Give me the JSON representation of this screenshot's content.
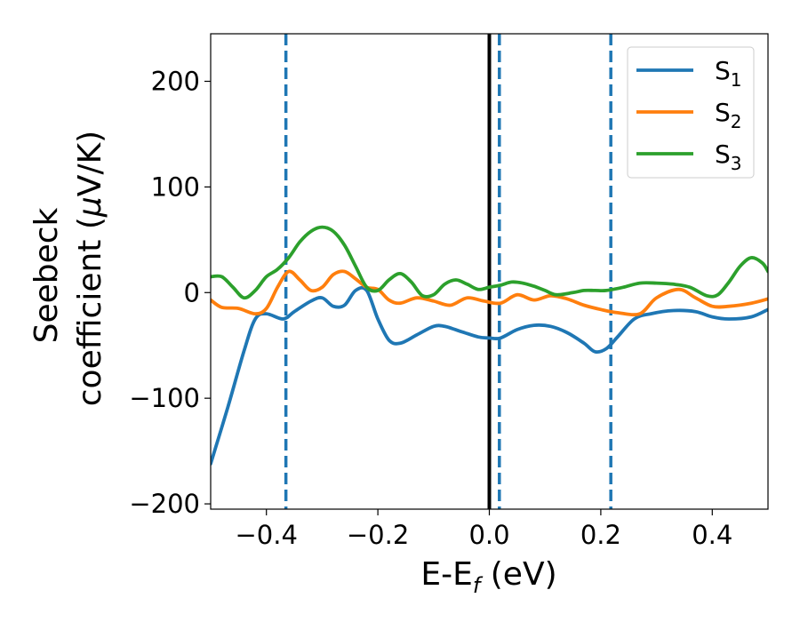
{
  "chart_data": {
    "type": "line",
    "xlabel": {
      "main": "E-E",
      "sub": "f",
      "unit": " (eV)"
    },
    "ylabel": {
      "line1": "Seebeck",
      "line2_text": "coefficient  (",
      "line2_mu": "μ",
      "line2_unit": "V/K)"
    },
    "xlim": [
      -0.5,
      0.5
    ],
    "ylim": [
      -205,
      245
    ],
    "xticks": [
      -0.4,
      -0.2,
      0.0,
      0.2,
      0.4
    ],
    "xtick_labels": [
      "−0.4",
      "−0.2",
      "0.0",
      "0.2",
      "0.4"
    ],
    "yticks": [
      -200,
      -100,
      0,
      100,
      200
    ],
    "ytick_labels": [
      "−200",
      "−100",
      "0",
      "100",
      "200"
    ],
    "grid": false,
    "legend_position": "top-right",
    "vertical_lines": [
      {
        "x": -0.365,
        "style": "dashed",
        "color": "#1f77b4"
      },
      {
        "x": 0.0,
        "style": "solid",
        "color": "#000000"
      },
      {
        "x": 0.018,
        "style": "dashed",
        "color": "#1f77b4"
      },
      {
        "x": 0.218,
        "style": "dashed",
        "color": "#1f77b4"
      }
    ],
    "series": [
      {
        "name": "S",
        "subscript": "1",
        "color": "#1f77b4",
        "points": [
          [
            -0.5,
            -162
          ],
          [
            -0.47,
            -110
          ],
          [
            -0.44,
            -55
          ],
          [
            -0.42,
            -25
          ],
          [
            -0.4,
            -20
          ],
          [
            -0.37,
            -25
          ],
          [
            -0.35,
            -18
          ],
          [
            -0.32,
            -8
          ],
          [
            -0.3,
            -5
          ],
          [
            -0.28,
            -13
          ],
          [
            -0.26,
            -12
          ],
          [
            -0.24,
            2
          ],
          [
            -0.22,
            2
          ],
          [
            -0.2,
            -25
          ],
          [
            -0.18,
            -45
          ],
          [
            -0.16,
            -48
          ],
          [
            -0.13,
            -40
          ],
          [
            -0.1,
            -32
          ],
          [
            -0.08,
            -32
          ],
          [
            -0.05,
            -37
          ],
          [
            -0.02,
            -42
          ],
          [
            0.0,
            -43
          ],
          [
            0.02,
            -43
          ],
          [
            0.05,
            -35
          ],
          [
            0.08,
            -31
          ],
          [
            0.11,
            -32
          ],
          [
            0.14,
            -38
          ],
          [
            0.17,
            -48
          ],
          [
            0.19,
            -56
          ],
          [
            0.21,
            -53
          ],
          [
            0.23,
            -42
          ],
          [
            0.26,
            -25
          ],
          [
            0.29,
            -20
          ],
          [
            0.33,
            -17
          ],
          [
            0.37,
            -18
          ],
          [
            0.4,
            -23
          ],
          [
            0.43,
            -25
          ],
          [
            0.47,
            -23
          ],
          [
            0.5,
            -16
          ]
        ]
      },
      {
        "name": "S",
        "subscript": "2",
        "color": "#ff7f0e",
        "points": [
          [
            -0.5,
            -7
          ],
          [
            -0.48,
            -14
          ],
          [
            -0.45,
            -15
          ],
          [
            -0.42,
            -20
          ],
          [
            -0.4,
            -15
          ],
          [
            -0.38,
            5
          ],
          [
            -0.36,
            20
          ],
          [
            -0.34,
            12
          ],
          [
            -0.32,
            2
          ],
          [
            -0.3,
            5
          ],
          [
            -0.28,
            17
          ],
          [
            -0.26,
            20
          ],
          [
            -0.24,
            13
          ],
          [
            -0.22,
            5
          ],
          [
            -0.2,
            3
          ],
          [
            -0.18,
            -7
          ],
          [
            -0.16,
            -10
          ],
          [
            -0.13,
            -5
          ],
          [
            -0.1,
            -8
          ],
          [
            -0.07,
            -12
          ],
          [
            -0.04,
            -5
          ],
          [
            -0.01,
            -8
          ],
          [
            0.02,
            -10
          ],
          [
            0.05,
            -2
          ],
          [
            0.08,
            -7
          ],
          [
            0.11,
            -3
          ],
          [
            0.14,
            -6
          ],
          [
            0.17,
            -12
          ],
          [
            0.2,
            -16
          ],
          [
            0.23,
            -19
          ],
          [
            0.27,
            -20
          ],
          [
            0.3,
            -5
          ],
          [
            0.34,
            3
          ],
          [
            0.37,
            -5
          ],
          [
            0.4,
            -13
          ],
          [
            0.43,
            -13
          ],
          [
            0.47,
            -10
          ],
          [
            0.5,
            -6
          ]
        ]
      },
      {
        "name": "S",
        "subscript": "3",
        "color": "#2ca02c",
        "points": [
          [
            -0.5,
            15
          ],
          [
            -0.48,
            15
          ],
          [
            -0.46,
            5
          ],
          [
            -0.44,
            -5
          ],
          [
            -0.42,
            2
          ],
          [
            -0.4,
            15
          ],
          [
            -0.38,
            22
          ],
          [
            -0.36,
            33
          ],
          [
            -0.34,
            48
          ],
          [
            -0.32,
            58
          ],
          [
            -0.3,
            62
          ],
          [
            -0.28,
            58
          ],
          [
            -0.26,
            45
          ],
          [
            -0.24,
            25
          ],
          [
            -0.22,
            5
          ],
          [
            -0.2,
            2
          ],
          [
            -0.18,
            12
          ],
          [
            -0.16,
            18
          ],
          [
            -0.14,
            10
          ],
          [
            -0.12,
            -3
          ],
          [
            -0.1,
            -2
          ],
          [
            -0.08,
            8
          ],
          [
            -0.06,
            12
          ],
          [
            -0.04,
            8
          ],
          [
            -0.02,
            3
          ],
          [
            0.0,
            5
          ],
          [
            0.02,
            7
          ],
          [
            0.04,
            10
          ],
          [
            0.06,
            9
          ],
          [
            0.08,
            6
          ],
          [
            0.1,
            2
          ],
          [
            0.12,
            -2
          ],
          [
            0.15,
            0
          ],
          [
            0.17,
            2
          ],
          [
            0.19,
            2
          ],
          [
            0.21,
            2
          ],
          [
            0.24,
            5
          ],
          [
            0.27,
            9
          ],
          [
            0.3,
            9
          ],
          [
            0.33,
            8
          ],
          [
            0.36,
            5
          ],
          [
            0.39,
            -3
          ],
          [
            0.41,
            -2
          ],
          [
            0.43,
            10
          ],
          [
            0.45,
            25
          ],
          [
            0.47,
            33
          ],
          [
            0.49,
            28
          ],
          [
            0.5,
            20
          ]
        ]
      }
    ]
  }
}
